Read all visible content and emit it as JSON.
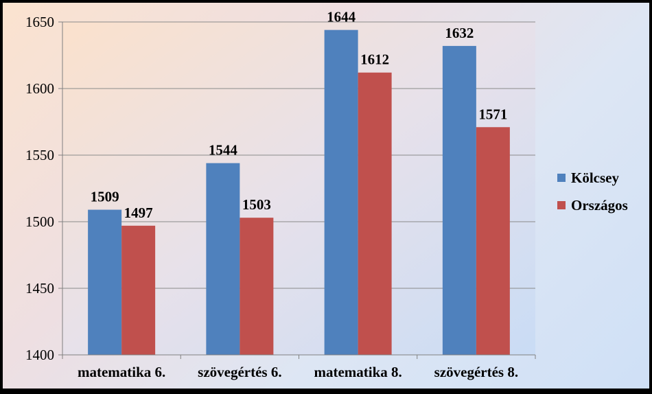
{
  "chart_data": {
    "type": "bar",
    "categories": [
      "matematika 6.",
      "szövegértés 6.",
      "matematika 8.",
      "szövegértés 8."
    ],
    "series": [
      {
        "name": "Kölcsey",
        "values": [
          1509,
          1544,
          1644,
          1632
        ],
        "color": "#4f81bd"
      },
      {
        "name": "Országos",
        "values": [
          1497,
          1503,
          1612,
          1571
        ],
        "color": "#c0504d"
      }
    ],
    "yticks": [
      1400,
      1450,
      1500,
      1550,
      1600,
      1650
    ],
    "ylim": [
      1400,
      1650
    ],
    "grid": true,
    "legend_position": "right"
  }
}
